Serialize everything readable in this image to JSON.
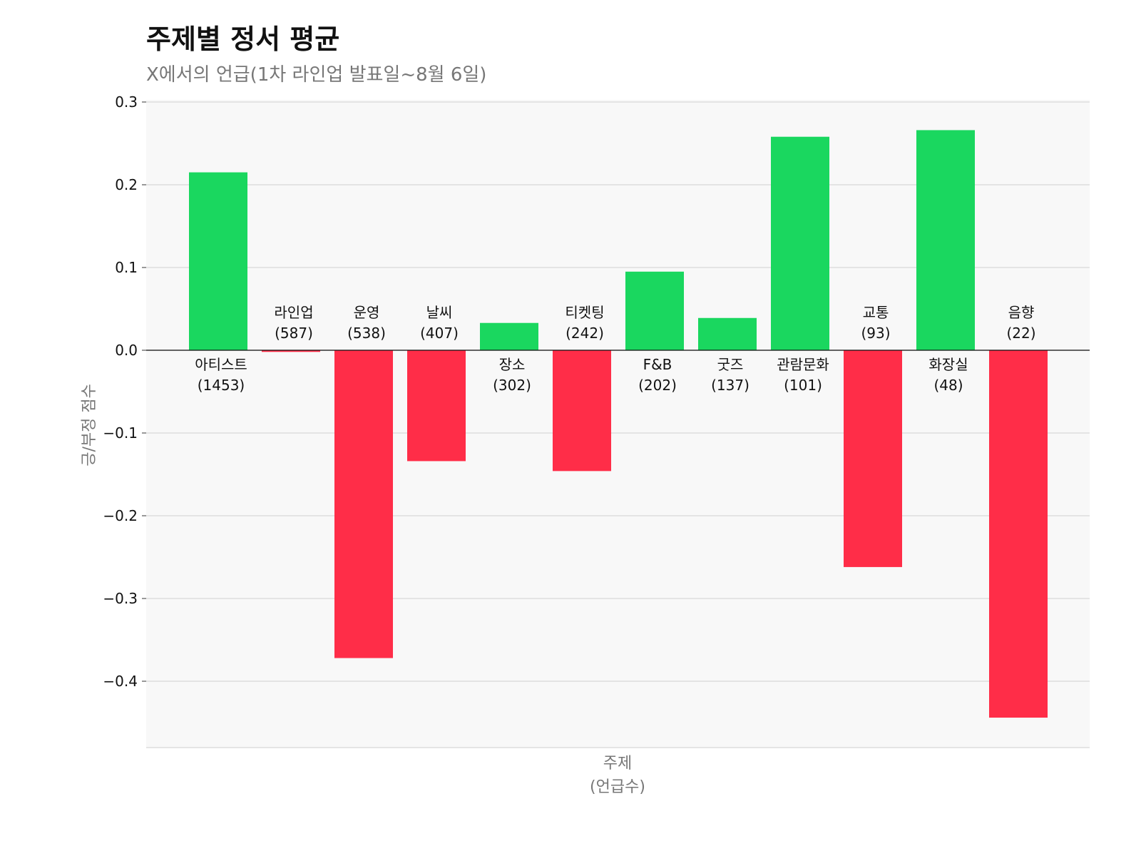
{
  "chart_data": {
    "type": "bar",
    "title": "주제별 정서 평균",
    "subtitle": "X에서의 언급(1차 라인업 발표일~8월 6일)",
    "xlabel": [
      "주제",
      "(언급수)"
    ],
    "ylabel": "긍/부정 점수",
    "categories": [
      "아티스트",
      "라인업",
      "운영",
      "날씨",
      "장소",
      "티켓팅",
      "F&B",
      "굿즈",
      "관람문화",
      "교통",
      "화장실",
      "음향"
    ],
    "counts": [
      "(1453)",
      "(587)",
      "(538)",
      "(407)",
      "(302)",
      "(242)",
      "(202)",
      "(137)",
      "(101)",
      "(93)",
      "(48)",
      "(22)"
    ],
    "values": [
      0.215,
      -0.002,
      -0.372,
      -0.134,
      0.033,
      -0.146,
      0.095,
      0.039,
      0.258,
      -0.262,
      0.266,
      -0.444
    ],
    "ylim": [
      -0.48,
      0.3
    ],
    "yticks": [
      0.3,
      0.2,
      0.1,
      0.0,
      -0.1,
      -0.2,
      -0.3,
      -0.4
    ],
    "ytick_labels": [
      "0.3",
      "0.2",
      "0.1",
      "0.0",
      "−0.1",
      "−0.2",
      "−0.3",
      "−0.4"
    ],
    "grid": true,
    "colors": {
      "positive": "#1ad75f",
      "negative": "#ff2d48",
      "background": "#f8f8f8"
    }
  }
}
